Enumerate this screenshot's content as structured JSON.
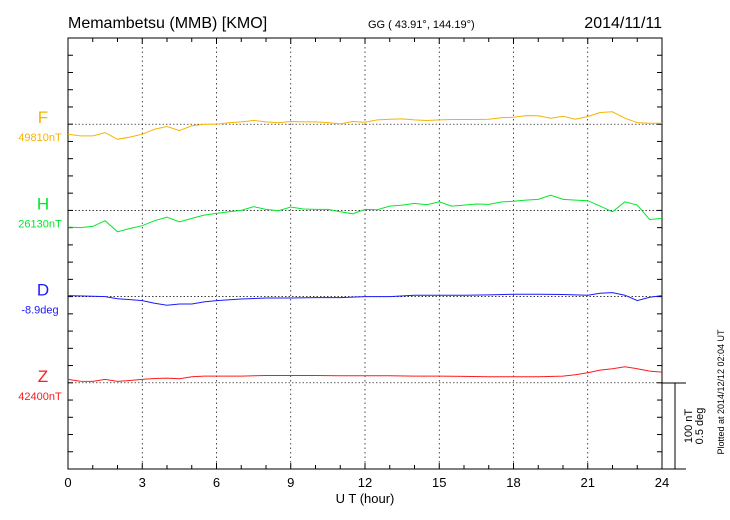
{
  "header": {
    "station": "Memambetsu (MMB)  [KMO]",
    "coords": "GG ( 43.91°, 144.19°)",
    "date": "2014/11/11"
  },
  "footer": {
    "plotted": "Plotted at 2014/12/12 02:04 UT"
  },
  "scale_bar": {
    "nt_label": "100 nT",
    "deg_label": "0.5 deg",
    "nt_value": 100,
    "deg_value": 0.5
  },
  "chart_data": {
    "type": "line",
    "title": "Memambetsu (MMB)  [KMO]",
    "xlabel": "U T (hour)",
    "xlim": [
      0,
      24
    ],
    "xticks": [
      "0",
      "3",
      "6",
      "9",
      "12",
      "15",
      "18",
      "21",
      "24"
    ],
    "grid": "dotted vertical every 3 hours, dotted baselines",
    "series": [
      {
        "name": "F",
        "baseline_label": "49810nT",
        "unit": "nT",
        "color": "#f5b400",
        "x": [
          0,
          0.5,
          1,
          1.5,
          2,
          2.5,
          3,
          3.5,
          4,
          4.5,
          5,
          5.5,
          6,
          6.5,
          7,
          7.5,
          8,
          8.5,
          9,
          9.5,
          10,
          10.5,
          11,
          11.5,
          12,
          12.5,
          13,
          13.5,
          14,
          14.5,
          15,
          15.5,
          16,
          16.5,
          17,
          17.5,
          18,
          18.5,
          19,
          19.5,
          20,
          20.5,
          21,
          21.5,
          22,
          22.5,
          23,
          23.5,
          24
        ],
        "y": [
          -11.6,
          -13.6,
          -13.6,
          -9.7,
          -17.5,
          -15,
          -11.6,
          -5.8,
          -2.7,
          -7.4,
          -1.9,
          0,
          0,
          1.6,
          2.7,
          4.3,
          2.7,
          1.6,
          3.1,
          2.7,
          2.7,
          1.9,
          0.4,
          3.1,
          2.3,
          5,
          5.8,
          6.2,
          5,
          4.3,
          5,
          5.4,
          5.4,
          5.4,
          5.8,
          7.4,
          8.1,
          10,
          9.7,
          7,
          9.3,
          5.8,
          8.9,
          13.6,
          14.4,
          7,
          1.9,
          1.2,
          1.2
        ]
      },
      {
        "name": "H",
        "baseline_label": "26130nT",
        "unit": "nT",
        "color": "#00e82a",
        "x": [
          0,
          0.5,
          1,
          1.5,
          2,
          2.5,
          3,
          3.5,
          4,
          4.5,
          5,
          5.5,
          6,
          6.5,
          7,
          7.5,
          8,
          8.5,
          9,
          9.5,
          10,
          10.5,
          11,
          11.5,
          12,
          12.5,
          13,
          13.5,
          14,
          14.5,
          15,
          15.5,
          16,
          16.5,
          17,
          17.5,
          18,
          18.5,
          19,
          19.5,
          20,
          20.5,
          21,
          21.5,
          22,
          22.5,
          23,
          23.5,
          24
        ],
        "y": [
          -19.4,
          -20,
          -18.6,
          -12,
          -24.8,
          -21,
          -17.8,
          -12,
          -7.8,
          -13.2,
          -9.3,
          -5.4,
          -3.5,
          -1.6,
          0,
          4.3,
          1.2,
          -0.4,
          3.9,
          1.6,
          1.2,
          1.2,
          -1.6,
          -3.9,
          1.2,
          0.8,
          5,
          6.2,
          8.1,
          6.6,
          10,
          5,
          6.2,
          7.4,
          7,
          9.7,
          10.5,
          12,
          12.8,
          17.8,
          12.8,
          12,
          11.3,
          5,
          -1.6,
          10,
          6.2,
          -10.5,
          -9.3
        ]
      },
      {
        "name": "D",
        "baseline_label": "-8.9deg",
        "unit": "deg",
        "color": "#1a1aff",
        "x": [
          0,
          1,
          1.5,
          2,
          3,
          3.5,
          4,
          4.5,
          5,
          5.5,
          6,
          7,
          8,
          9,
          10,
          11,
          12,
          13,
          14,
          15,
          16,
          17,
          18,
          19,
          20,
          21,
          21.5,
          22,
          22.5,
          23,
          23.5,
          24
        ],
        "y": [
          0.006,
          0.002,
          0,
          -0.012,
          -0.023,
          -0.039,
          -0.05,
          -0.043,
          -0.043,
          -0.031,
          -0.023,
          -0.014,
          -0.008,
          -0.008,
          -0.006,
          -0.006,
          0,
          0,
          0.008,
          0.008,
          0.008,
          0.01,
          0.014,
          0.014,
          0.012,
          0.008,
          0.019,
          0.023,
          0.008,
          -0.023,
          -0.004,
          0.006
        ]
      },
      {
        "name": "Z",
        "baseline_label": "42400nT",
        "unit": "nT",
        "color": "#ff1a1a",
        "x": [
          0,
          0.5,
          1,
          1.5,
          2,
          2.5,
          3,
          3.5,
          4,
          4.5,
          5,
          5.5,
          6,
          7,
          8,
          9,
          10,
          11,
          12,
          13,
          14,
          15,
          16,
          17,
          18,
          19,
          20,
          20.5,
          21,
          21.5,
          22,
          22.5,
          23,
          23.5,
          24
        ],
        "y": [
          3.9,
          1.9,
          1.6,
          3.9,
          1.6,
          2.7,
          3.9,
          5,
          5.4,
          4.7,
          7,
          7.8,
          7.8,
          7.8,
          8.5,
          8.5,
          8.5,
          8.1,
          8.1,
          8.1,
          7.8,
          7.8,
          7.4,
          7,
          7,
          7,
          7.8,
          9.3,
          11.6,
          14.7,
          16.3,
          18.6,
          16.3,
          13.6,
          12.4
        ]
      }
    ]
  }
}
